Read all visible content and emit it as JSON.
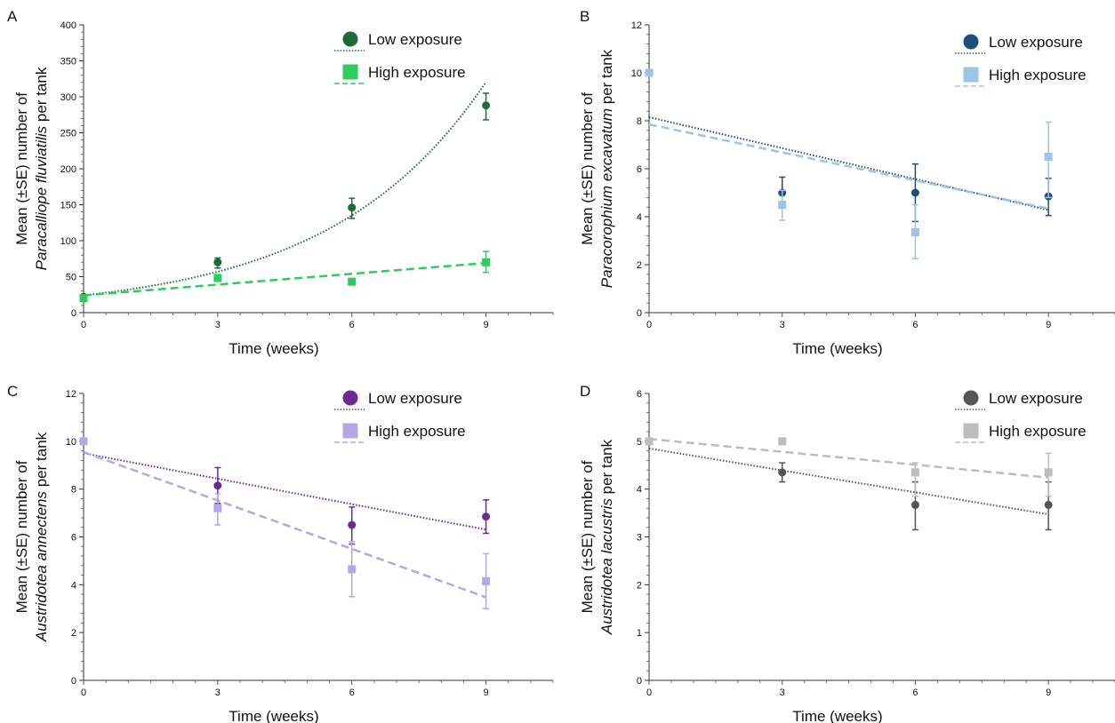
{
  "chart_data": [
    {
      "panel": "A",
      "type": "scatter",
      "xlabel": "Time (weeks)",
      "ylabel_line1": "Mean (±SE) number of",
      "ylabel_species": "Paracalliope fluviatilis",
      "ylabel_suffix": " per tank",
      "x_ticks": [
        0,
        3,
        6,
        9
      ],
      "y_ticks": [
        0,
        50,
        100,
        150,
        200,
        250,
        300,
        350,
        400
      ],
      "xlim": [
        0,
        10.5
      ],
      "ylim": [
        0,
        400
      ],
      "legend_position": "top-right",
      "series": [
        {
          "name": "Low exposure",
          "color": "#1e6b3a",
          "marker": "circle",
          "line": "dotted",
          "x": [
            0,
            3,
            6,
            9
          ],
          "y": [
            22,
            70,
            146,
            288
          ],
          "err_lower": [
            20,
            62,
            131,
            268
          ],
          "err_upper": [
            24,
            76,
            159,
            305
          ],
          "fit": "exponential",
          "fit_params": [
            24,
            0.288
          ]
        },
        {
          "name": "High exposure",
          "color": "#2ecc5e",
          "marker": "square",
          "line": "dashed",
          "x": [
            0,
            3,
            6,
            9
          ],
          "y": [
            20,
            48,
            43,
            70
          ],
          "err_lower": [
            18,
            44,
            40,
            56
          ],
          "err_upper": [
            23,
            53,
            47,
            85
          ],
          "fit": "linear",
          "fit_params": [
            24,
            5.0
          ]
        }
      ]
    },
    {
      "panel": "B",
      "type": "scatter",
      "xlabel": "Time (weeks)",
      "ylabel_line1": "Mean (±SE) number of",
      "ylabel_species": "Paracorophium excavatum",
      "ylabel_suffix": " per tank",
      "x_ticks": [
        0,
        3,
        6,
        9
      ],
      "y_ticks": [
        0,
        2,
        4,
        6,
        8,
        10,
        12
      ],
      "xlim": [
        0,
        10.5
      ],
      "ylim": [
        0,
        12
      ],
      "legend_position": "top-right",
      "series": [
        {
          "name": "Low exposure",
          "color": "#1f4e79",
          "marker": "circle",
          "line": "dotted",
          "x": [
            0,
            3,
            6,
            9
          ],
          "y": [
            10,
            5.0,
            5.0,
            4.85
          ],
          "err_lower": [
            10,
            4.4,
            3.8,
            4.05
          ],
          "err_upper": [
            10,
            5.65,
            6.2,
            5.6
          ],
          "fit": "linear",
          "fit_params": [
            8.15,
            -0.43
          ]
        },
        {
          "name": "High exposure",
          "color": "#9dc3e6",
          "marker": "square",
          "line": "dashed",
          "x": [
            0,
            3,
            6,
            9
          ],
          "y": [
            10,
            4.5,
            3.35,
            6.5
          ],
          "err_lower": [
            10,
            3.85,
            2.25,
            4.8
          ],
          "err_upper": [
            10,
            5.1,
            4.5,
            7.95
          ],
          "fit": "linear",
          "fit_params": [
            7.85,
            -0.39
          ]
        }
      ]
    },
    {
      "panel": "C",
      "type": "scatter",
      "xlabel": "Time (weeks)",
      "ylabel_line1": "Mean (±SE) number of",
      "ylabel_species": "Austridotea annectens",
      "ylabel_suffix": " per tank",
      "x_ticks": [
        0,
        3,
        6,
        9
      ],
      "y_ticks": [
        0,
        2,
        4,
        6,
        8,
        10,
        12
      ],
      "xlim": [
        0,
        10.5
      ],
      "ylim": [
        0,
        12
      ],
      "legend_position": "top-right",
      "series": [
        {
          "name": "Low exposure",
          "color": "#6a2c91",
          "marker": "circle",
          "line": "dotted",
          "x": [
            0,
            3,
            6,
            9
          ],
          "y": [
            10,
            8.15,
            6.5,
            6.85
          ],
          "err_lower": [
            10,
            7.4,
            5.7,
            6.15
          ],
          "err_upper": [
            10,
            8.9,
            7.25,
            7.55
          ],
          "fit": "linear",
          "fit_params": [
            9.5,
            -0.355
          ]
        },
        {
          "name": "High exposure",
          "color": "#b4a7e8",
          "marker": "square",
          "line": "dashed",
          "x": [
            0,
            3,
            6,
            9
          ],
          "y": [
            10,
            7.2,
            4.65,
            4.15
          ],
          "err_lower": [
            10,
            6.5,
            3.5,
            3.0
          ],
          "err_upper": [
            10,
            7.8,
            5.8,
            5.3
          ],
          "fit": "linear",
          "fit_params": [
            9.55,
            -0.675
          ]
        }
      ]
    },
    {
      "panel": "D",
      "type": "scatter",
      "xlabel": "Time (weeks)",
      "ylabel_line1": "Mean (±SE) number of",
      "ylabel_species": "Austridotea lacustris",
      "ylabel_suffix": " per tank",
      "x_ticks": [
        0,
        3,
        6,
        9
      ],
      "y_ticks": [
        0,
        1,
        2,
        3,
        4,
        5,
        6
      ],
      "xlim": [
        0,
        10.5
      ],
      "ylim": [
        0,
        6
      ],
      "legend_position": "top-right",
      "series": [
        {
          "name": "Low exposure",
          "color": "#555555",
          "marker": "circle",
          "line": "dotted",
          "x": [
            0,
            3,
            6,
            9
          ],
          "y": [
            5,
            4.35,
            3.67,
            3.67
          ],
          "err_lower": [
            5,
            4.15,
            3.15,
            3.15
          ],
          "err_upper": [
            5,
            4.55,
            4.15,
            4.15
          ],
          "fit": "linear",
          "fit_params": [
            4.85,
            -0.153
          ]
        },
        {
          "name": "High exposure",
          "color": "#bdbdbd",
          "marker": "square",
          "line": "dashed",
          "x": [
            0,
            3,
            6,
            9
          ],
          "y": [
            5,
            5.0,
            4.35,
            4.35
          ],
          "err_lower": [
            5,
            5.0,
            3.85,
            3.85
          ],
          "err_upper": [
            5,
            5.0,
            4.55,
            4.75
          ],
          "fit": "linear",
          "fit_params": [
            5.05,
            -0.09
          ]
        }
      ]
    }
  ]
}
